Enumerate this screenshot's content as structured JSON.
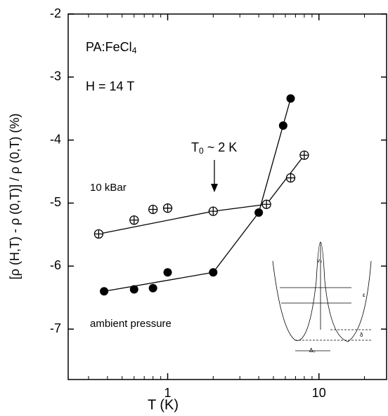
{
  "chart_data": {
    "type": "scatter",
    "xlabel": "T (K)",
    "ylabel": "[ρ (H,T) - ρ (0,T)] / ρ (0,T) (%)",
    "xscale": "log",
    "xlim": [
      0.22,
      28
    ],
    "xticks": [
      1,
      10
    ],
    "ylim": [
      -7.8,
      -2
    ],
    "yticks": [
      -2,
      -3,
      -4,
      -5,
      -6,
      -7
    ],
    "series": [
      {
        "name": "10 kBar",
        "marker": "circle-plus",
        "color": "#000000",
        "x": [
          0.35,
          0.6,
          0.8,
          1.0,
          2.0,
          4.5,
          6.5,
          8.0
        ],
        "values": [
          -5.49,
          -5.27,
          -5.1,
          -5.08,
          -5.13,
          -5.02,
          -4.6,
          -4.24
        ]
      },
      {
        "name": "ambient pressure",
        "marker": "filled-circle",
        "color": "#000000",
        "x": [
          0.38,
          0.6,
          0.8,
          1.0,
          2.0,
          4.0,
          5.8,
          6.5
        ],
        "values": [
          -6.4,
          -6.37,
          -6.35,
          -6.1,
          -6.1,
          -5.15,
          -3.77,
          -3.34
        ]
      }
    ],
    "annotations": {
      "compound": {
        "text": "PA:FeCl",
        "sub": "4"
      },
      "field": "H = 14 T",
      "t0": {
        "text": "T",
        "sub": "0",
        "rest": " ~ 2 K"
      }
    },
    "inset_labels": [
      "v₀",
      "ε",
      "δ",
      "Δ₀"
    ]
  }
}
